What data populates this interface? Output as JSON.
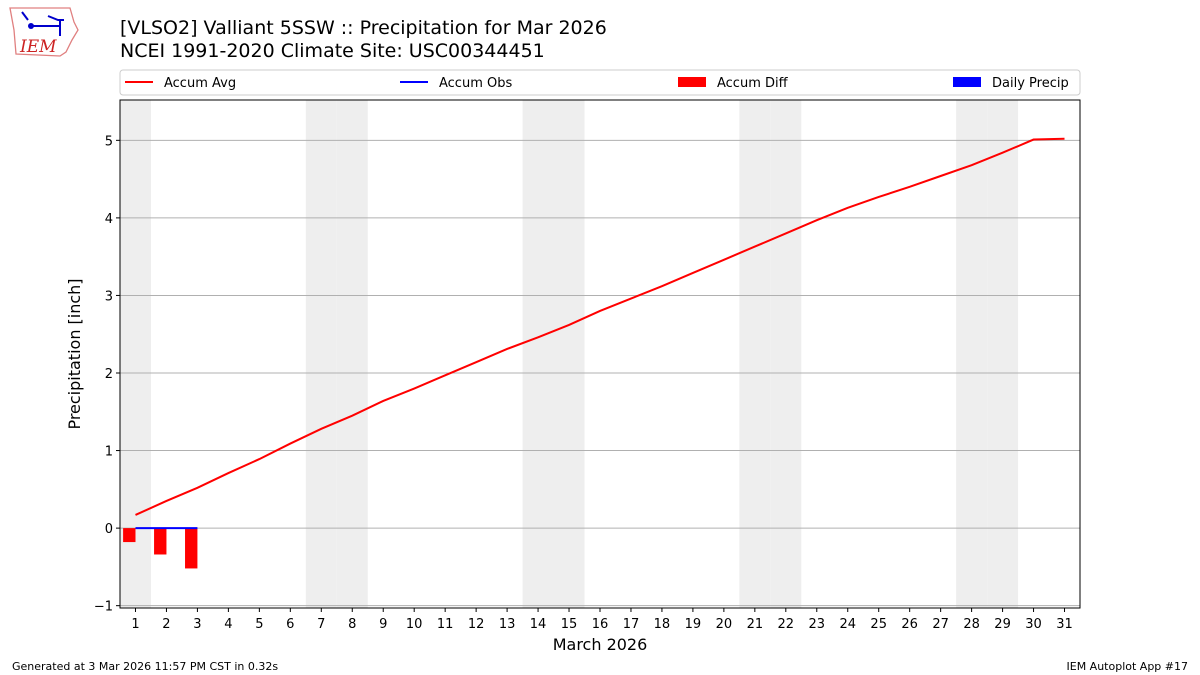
{
  "title_line1": "[VLSO2] Valliant 5SSW :: Precipitation for Mar 2026",
  "title_line2": "NCEI 1991-2020 Climate Site: USC00344451",
  "logo_text": "IEM",
  "footer_left": "Generated at 3 Mar 2026 11:57 PM CST in 0.32s",
  "footer_right": "IEM Autoplot App #17",
  "chart_data": {
    "type": "line",
    "xlabel": "March 2026",
    "ylabel": "Precipitation [inch]",
    "xlim": [
      0.5,
      31.5
    ],
    "ylim": [
      -1.03,
      5.52
    ],
    "yticks": [
      -1,
      0,
      1,
      2,
      3,
      4,
      5
    ],
    "xticks": [
      1,
      2,
      3,
      4,
      5,
      6,
      7,
      8,
      9,
      10,
      11,
      12,
      13,
      14,
      15,
      16,
      17,
      18,
      19,
      20,
      21,
      22,
      23,
      24,
      25,
      26,
      27,
      28,
      29,
      30,
      31
    ],
    "grid": "horizontal",
    "legend_placement": "top",
    "weekend_shading_days": [
      1,
      7,
      8,
      14,
      15,
      21,
      22,
      28,
      29
    ],
    "shade_color": "#eeeeee",
    "legend": [
      {
        "label": "Accum Avg",
        "kind": "line",
        "color": "#ff0000"
      },
      {
        "label": "Accum Obs",
        "kind": "line",
        "color": "#0000ff"
      },
      {
        "label": "Accum Diff",
        "kind": "bar",
        "color": "#ff0000"
      },
      {
        "label": "Daily Precip",
        "kind": "bar",
        "color": "#0000ff"
      }
    ],
    "accum_avg": {
      "x": [
        1,
        2,
        3,
        4,
        5,
        6,
        7,
        8,
        9,
        10,
        11,
        12,
        13,
        14,
        15,
        16,
        17,
        18,
        19,
        20,
        21,
        22,
        23,
        24,
        25,
        26,
        27,
        28,
        29,
        30,
        31
      ],
      "values": [
        0.17,
        0.35,
        0.52,
        0.71,
        0.89,
        1.09,
        1.28,
        1.45,
        1.64,
        1.8,
        1.97,
        2.14,
        2.31,
        2.46,
        2.62,
        2.8,
        2.96,
        3.12,
        3.29,
        3.46,
        3.63,
        3.8,
        3.97,
        4.13,
        4.27,
        4.4,
        4.54,
        4.68,
        4.84,
        5.01,
        5.02
      ]
    },
    "accum_obs": {
      "x": [
        1,
        2,
        3
      ],
      "values": [
        0,
        0,
        0
      ]
    },
    "accum_diff": {
      "x": [
        1,
        2,
        3
      ],
      "values": [
        -0.18,
        -0.34,
        -0.52
      ]
    },
    "daily_precip": {
      "x": [
        1,
        2,
        3
      ],
      "values": [
        0,
        0,
        0
      ]
    }
  }
}
